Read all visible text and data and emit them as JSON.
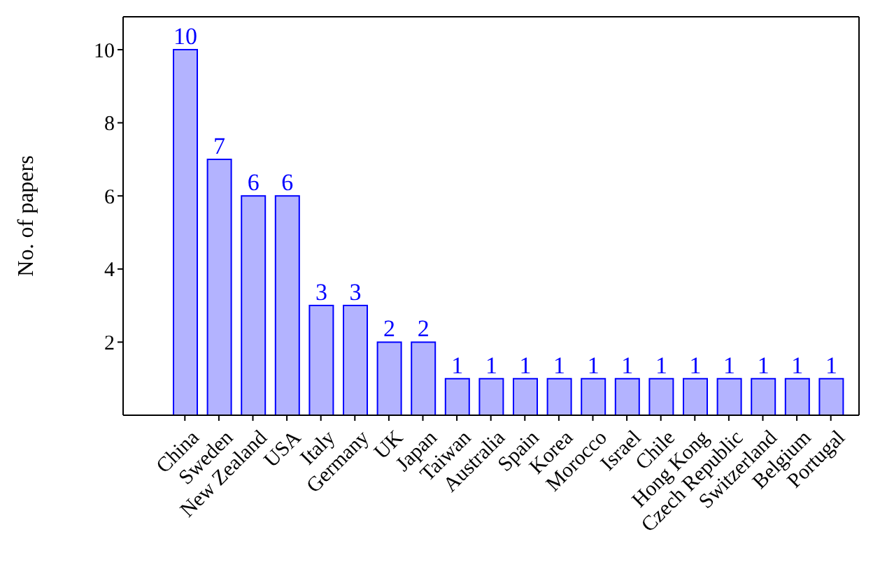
{
  "chart_data": {
    "type": "bar",
    "ylabel": "No. of papers",
    "categories": [
      "China",
      "Sweden",
      "New Zealand",
      "USA",
      "Italy",
      "Germany",
      "UK",
      "Japan",
      "Taiwan",
      "Australia",
      "Spain",
      "Korea",
      "Morocco",
      "Israel",
      "Chile",
      "Hong Kong",
      "Czech Republic",
      "Switzerland",
      "Belgium",
      "Portugal"
    ],
    "values": [
      10,
      7,
      6,
      6,
      3,
      3,
      2,
      2,
      1,
      1,
      1,
      1,
      1,
      1,
      1,
      1,
      1,
      1,
      1,
      1
    ],
    "color": "#b3b3ff",
    "ylim": [
      0,
      10.9
    ],
    "yticks": [
      2,
      4,
      6,
      8,
      10
    ],
    "data_labels": true
  }
}
